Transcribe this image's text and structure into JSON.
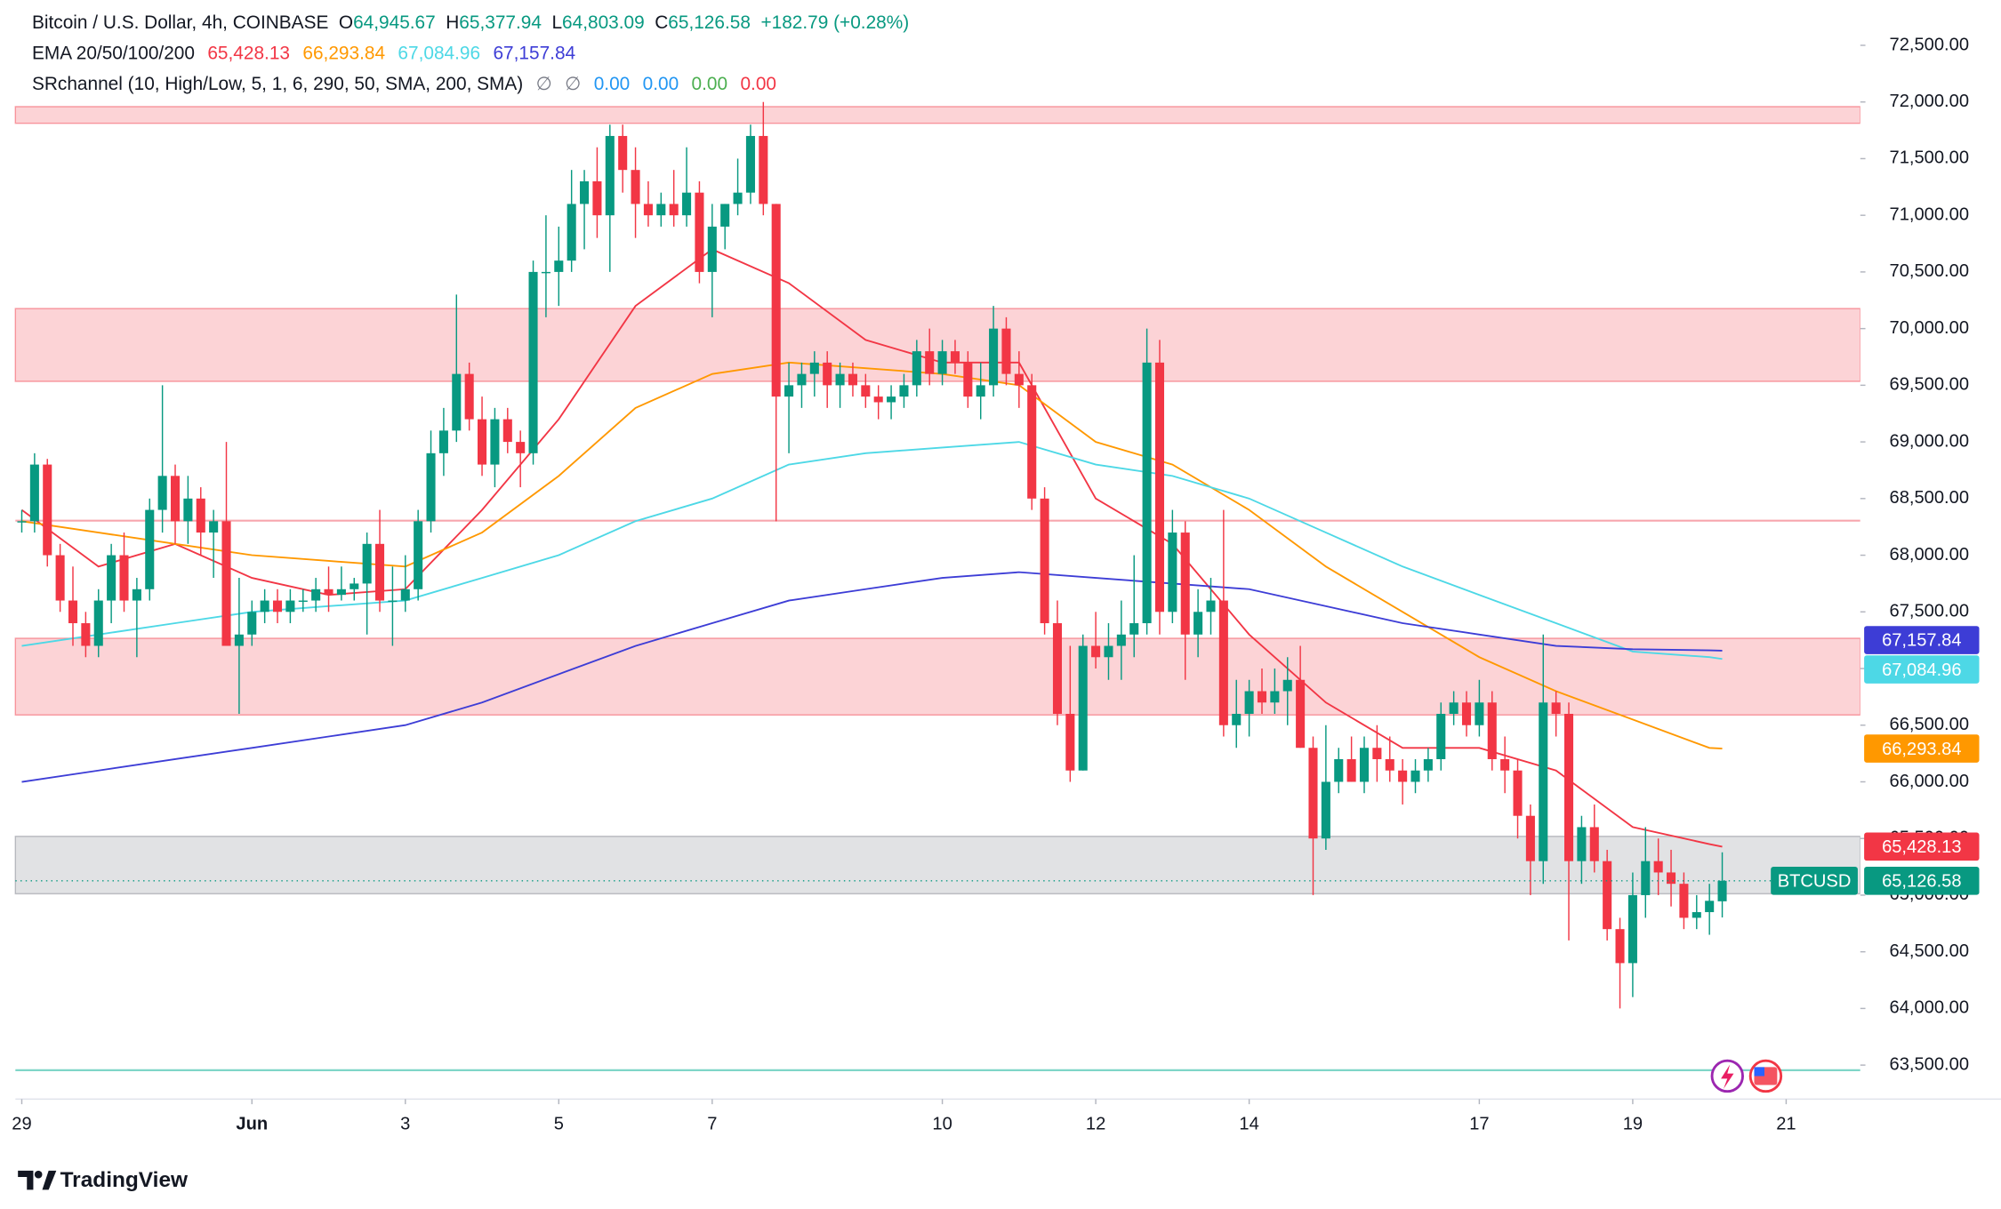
{
  "chart_data": {
    "type": "candlestick",
    "title": "Bitcoin / U.S. Dollar, 4h, COINBASE",
    "ohlc_legend": [
      {
        "label": "O",
        "value": "64,945.67"
      },
      {
        "label": "H",
        "value": "65,377.94"
      },
      {
        "label": "L",
        "value": "64,803.09"
      },
      {
        "label": "C",
        "value": "65,126.58"
      }
    ],
    "change": "+182.79 (+0.28%)",
    "symbol": "BTCUSD",
    "last_price_label": "65,126.58",
    "up_color": "#089981",
    "down_color": "#f23645",
    "candles": [
      [
        68300,
        68400,
        68200,
        68300
      ],
      [
        68300,
        68900,
        68200,
        68800
      ],
      [
        68800,
        68850,
        67900,
        68000
      ],
      [
        68000,
        68100,
        67500,
        67600
      ],
      [
        67600,
        67900,
        67200,
        67400
      ],
      [
        67400,
        67500,
        67100,
        67200
      ],
      [
        67200,
        67700,
        67100,
        67600
      ],
      [
        67600,
        68100,
        67400,
        68000
      ],
      [
        68000,
        68200,
        67500,
        67600
      ],
      [
        67600,
        67800,
        67100,
        67700
      ],
      [
        67700,
        68500,
        67600,
        68400
      ],
      [
        68400,
        69500,
        68200,
        68700
      ],
      [
        68700,
        68800,
        68100,
        68300
      ],
      [
        68300,
        68700,
        68100,
        68500
      ],
      [
        68500,
        68600,
        68000,
        68200
      ],
      [
        68200,
        68400,
        67800,
        68300
      ],
      [
        68300,
        69000,
        67200,
        67200
      ],
      [
        67200,
        67800,
        66600,
        67300
      ],
      [
        67300,
        67600,
        67200,
        67500
      ],
      [
        67500,
        67700,
        67400,
        67600
      ],
      [
        67600,
        67700,
        67400,
        67500
      ],
      [
        67500,
        67700,
        67400,
        67600
      ],
      [
        67600,
        67700,
        67500,
        67600
      ],
      [
        67600,
        67800,
        67500,
        67700
      ],
      [
        67700,
        67900,
        67500,
        67650
      ],
      [
        67650,
        67900,
        67600,
        67700
      ],
      [
        67700,
        67800,
        67600,
        67750
      ],
      [
        67750,
        68200,
        67300,
        68100
      ],
      [
        68100,
        68400,
        67500,
        67600
      ],
      [
        67600,
        67900,
        67200,
        67600
      ],
      [
        67600,
        68000,
        67500,
        67700
      ],
      [
        67700,
        68400,
        67600,
        68300
      ],
      [
        68300,
        69100,
        68200,
        68900
      ],
      [
        68900,
        69300,
        68700,
        69100
      ],
      [
        69100,
        70300,
        69000,
        69600
      ],
      [
        69600,
        69700,
        69100,
        69200
      ],
      [
        69200,
        69400,
        68700,
        68800
      ],
      [
        68800,
        69300,
        68600,
        69200
      ],
      [
        69200,
        69300,
        68900,
        69000
      ],
      [
        69000,
        69100,
        68600,
        68900
      ],
      [
        68900,
        70600,
        68800,
        70500
      ],
      [
        70500,
        71000,
        70100,
        70500
      ],
      [
        70500,
        70900,
        70200,
        70600
      ],
      [
        70600,
        71400,
        70500,
        71100
      ],
      [
        71100,
        71400,
        70700,
        71300
      ],
      [
        71300,
        71600,
        70800,
        71000
      ],
      [
        71000,
        71800,
        70500,
        71700
      ],
      [
        71700,
        71800,
        71200,
        71400
      ],
      [
        71400,
        71600,
        70800,
        71100
      ],
      [
        71100,
        71300,
        70900,
        71000
      ],
      [
        71000,
        71200,
        70900,
        71100
      ],
      [
        71100,
        71400,
        70900,
        71000
      ],
      [
        71000,
        71600,
        70900,
        71200
      ],
      [
        71200,
        71300,
        70400,
        70500
      ],
      [
        70500,
        71100,
        70100,
        70900
      ],
      [
        70900,
        71100,
        70700,
        71100
      ],
      [
        71100,
        71500,
        71000,
        71200
      ],
      [
        71200,
        71800,
        71100,
        71700
      ],
      [
        71700,
        72000,
        71000,
        71100
      ],
      [
        71100,
        71100,
        68300,
        69400
      ],
      [
        69400,
        69700,
        68900,
        69500
      ],
      [
        69500,
        69700,
        69300,
        69600
      ],
      [
        69600,
        69800,
        69400,
        69700
      ],
      [
        69700,
        69800,
        69300,
        69500
      ],
      [
        69500,
        69700,
        69300,
        69600
      ],
      [
        69600,
        69700,
        69400,
        69500
      ],
      [
        69500,
        69600,
        69300,
        69400
      ],
      [
        69400,
        69500,
        69200,
        69350
      ],
      [
        69350,
        69500,
        69200,
        69400
      ],
      [
        69400,
        69600,
        69300,
        69500
      ],
      [
        69500,
        69900,
        69400,
        69800
      ],
      [
        69800,
        70000,
        69500,
        69600
      ],
      [
        69600,
        69900,
        69500,
        69800
      ],
      [
        69800,
        69900,
        69600,
        69700
      ],
      [
        69700,
        69800,
        69300,
        69400
      ],
      [
        69400,
        69700,
        69200,
        69500
      ],
      [
        69500,
        70200,
        69400,
        70000
      ],
      [
        70000,
        70100,
        69500,
        69600
      ],
      [
        69600,
        69800,
        69300,
        69500
      ],
      [
        69500,
        69600,
        68400,
        68500
      ],
      [
        68500,
        68600,
        67300,
        67400
      ],
      [
        67400,
        67600,
        66500,
        66600
      ],
      [
        66600,
        67200,
        66000,
        66100
      ],
      [
        66100,
        67300,
        66100,
        67200
      ],
      [
        67200,
        67500,
        67000,
        67100
      ],
      [
        67100,
        67400,
        66900,
        67200
      ],
      [
        67200,
        67600,
        66900,
        67300
      ],
      [
        67300,
        68000,
        67100,
        67400
      ],
      [
        67400,
        70000,
        67300,
        69700
      ],
      [
        69700,
        69900,
        67300,
        67500
      ],
      [
        67500,
        68400,
        67400,
        68200
      ],
      [
        68200,
        68300,
        66900,
        67300
      ],
      [
        67300,
        67700,
        67100,
        67500
      ],
      [
        67500,
        67800,
        67300,
        67600
      ],
      [
        67600,
        68400,
        66400,
        66500
      ],
      [
        66500,
        66900,
        66300,
        66600
      ],
      [
        66600,
        66900,
        66400,
        66800
      ],
      [
        66800,
        67000,
        66600,
        66700
      ],
      [
        66700,
        67000,
        66600,
        66800
      ],
      [
        66800,
        67100,
        66500,
        66900
      ],
      [
        66900,
        67200,
        66300,
        66300
      ],
      [
        66300,
        66400,
        65000,
        65500
      ],
      [
        65500,
        66500,
        65400,
        66000
      ],
      [
        66000,
        66300,
        65900,
        66200
      ],
      [
        66200,
        66400,
        66000,
        66000
      ],
      [
        66000,
        66400,
        65900,
        66300
      ],
      [
        66300,
        66500,
        66000,
        66200
      ],
      [
        66200,
        66400,
        66000,
        66100
      ],
      [
        66100,
        66200,
        65800,
        66000
      ],
      [
        66000,
        66200,
        65900,
        66100
      ],
      [
        66100,
        66300,
        66000,
        66200
      ],
      [
        66200,
        66700,
        66100,
        66600
      ],
      [
        66600,
        66800,
        66500,
        66700
      ],
      [
        66700,
        66800,
        66400,
        66500
      ],
      [
        66500,
        66900,
        66400,
        66700
      ],
      [
        66700,
        66800,
        66100,
        66200
      ],
      [
        66200,
        66400,
        65900,
        66100
      ],
      [
        66100,
        66200,
        65500,
        65700
      ],
      [
        65700,
        65800,
        65000,
        65300
      ],
      [
        65300,
        67300,
        65100,
        66700
      ],
      [
        66700,
        66800,
        66400,
        66600
      ],
      [
        66600,
        66700,
        64600,
        65300
      ],
      [
        65300,
        65700,
        65100,
        65600
      ],
      [
        65600,
        65800,
        65200,
        65300
      ],
      [
        65300,
        65400,
        64600,
        64700
      ],
      [
        64700,
        64800,
        64000,
        64400
      ],
      [
        64400,
        65200,
        64100,
        65000
      ],
      [
        65000,
        65600,
        64800,
        65300
      ],
      [
        65300,
        65500,
        65000,
        65200
      ],
      [
        65200,
        65400,
        64900,
        65100
      ],
      [
        65100,
        65200,
        64700,
        64800
      ],
      [
        64800,
        65000,
        64700,
        64850
      ],
      [
        64850,
        65100,
        64650,
        64950
      ],
      [
        64945.67,
        65377.94,
        64803.09,
        65126.58
      ]
    ],
    "ema": {
      "title": "EMA 20/50/100/200",
      "x": [
        0,
        6,
        12,
        18,
        24,
        30,
        36,
        42,
        48,
        54,
        60,
        66,
        72,
        78,
        84,
        90,
        96,
        102,
        108,
        114,
        120,
        126,
        132,
        133
      ],
      "series": [
        {
          "color": "#f23645",
          "value_label": "65,428.13",
          "values": [
            68400,
            67900,
            68100,
            67800,
            67650,
            67700,
            68400,
            69200,
            70200,
            70700,
            70400,
            69900,
            69700,
            69700,
            68500,
            68100,
            67300,
            66700,
            66300,
            66300,
            66100,
            65600,
            65450,
            65428.13
          ]
        },
        {
          "color": "#ff9800",
          "value_label": "66,293.84",
          "values": [
            68300,
            68200,
            68100,
            68000,
            67950,
            67900,
            68200,
            68700,
            69300,
            69600,
            69700,
            69650,
            69600,
            69500,
            69000,
            68800,
            68400,
            67900,
            67500,
            67100,
            66800,
            66550,
            66300,
            66293.84
          ]
        },
        {
          "color": "#4dd8e6",
          "value_label": "67,084.96",
          "values": [
            67200,
            67300,
            67400,
            67500,
            67550,
            67600,
            67800,
            68000,
            68300,
            68500,
            68800,
            68900,
            68950,
            69000,
            68800,
            68700,
            68500,
            68200,
            67900,
            67650,
            67400,
            67150,
            67100,
            67084.96
          ]
        },
        {
          "color": "#3d3dd6",
          "value_label": "67,157.84",
          "values": [
            66000,
            66100,
            66200,
            66300,
            66400,
            66500,
            66700,
            66950,
            67200,
            67400,
            67600,
            67700,
            67800,
            67850,
            67800,
            67750,
            67700,
            67550,
            67400,
            67300,
            67200,
            67170,
            67160,
            67157.84
          ]
        }
      ]
    },
    "srchannel": {
      "title": "SRchannel (10, High/Low, 5, 1, 6, 290, 50, SMA, 200, SMA)",
      "symbols": [
        "∅",
        "∅"
      ],
      "outputs": [
        {
          "label": "0.00",
          "color": "#2196f3"
        },
        {
          "label": "0.00",
          "color": "#2196f3"
        },
        {
          "label": "0.00",
          "color": "#4caf50"
        },
        {
          "label": "0.00",
          "color": "#f23645"
        }
      ],
      "zones": [
        {
          "range": [
            71812,
            71959
          ],
          "color": "#f23645"
        },
        {
          "range": [
            69534,
            70177
          ],
          "color": "#f23645"
        },
        {
          "range": [
            66590,
            67267
          ],
          "color": "#f23645"
        },
        {
          "range": [
            65012,
            65519
          ],
          "color": "#787b86"
        }
      ],
      "lines": [
        {
          "value": 68305,
          "color": "#f7a6ad"
        },
        {
          "value": 63455,
          "color": "#7fd6c8"
        }
      ]
    },
    "ylim": [
      63200,
      72900
    ],
    "yticks": [
      {
        "value": 63500,
        "label": "63,500.00"
      },
      {
        "value": 64000,
        "label": "64,000.00"
      },
      {
        "value": 64500,
        "label": "64,500.00"
      },
      {
        "value": 65000,
        "label": "65,000.00"
      },
      {
        "value": 65500,
        "label": "65,500.00"
      },
      {
        "value": 66000,
        "label": "66,000.00"
      },
      {
        "value": 66500,
        "label": "66,500.00"
      },
      {
        "value": 67000,
        "label": "67,000.00"
      },
      {
        "value": 67500,
        "label": "67,500.00"
      },
      {
        "value": 68000,
        "label": "68,000.00"
      },
      {
        "value": 68500,
        "label": "68,500.00"
      },
      {
        "value": 69000,
        "label": "69,000.00"
      },
      {
        "value": 69500,
        "label": "69,500.00"
      },
      {
        "value": 70000,
        "label": "70,000.00"
      },
      {
        "value": 70500,
        "label": "70,500.00"
      },
      {
        "value": 71000,
        "label": "71,000.00"
      },
      {
        "value": 71500,
        "label": "71,500.00"
      },
      {
        "value": 72000,
        "label": "72,000.00"
      },
      {
        "value": 72500,
        "label": "72,500.00"
      }
    ],
    "xlim": [
      -0.5,
      143.8
    ],
    "xticks": [
      {
        "value": 0,
        "label": "29"
      },
      {
        "value": 18,
        "label": "Jun"
      },
      {
        "value": 30,
        "label": "3"
      },
      {
        "value": 42,
        "label": "5"
      },
      {
        "value": 54,
        "label": "7"
      },
      {
        "value": 72,
        "label": "10"
      },
      {
        "value": 84,
        "label": "12"
      },
      {
        "value": 96,
        "label": "14"
      },
      {
        "value": 114,
        "label": "17"
      },
      {
        "value": 126,
        "label": "19"
      },
      {
        "value": 138,
        "label": "21"
      }
    ],
    "footer": "TradingView"
  }
}
